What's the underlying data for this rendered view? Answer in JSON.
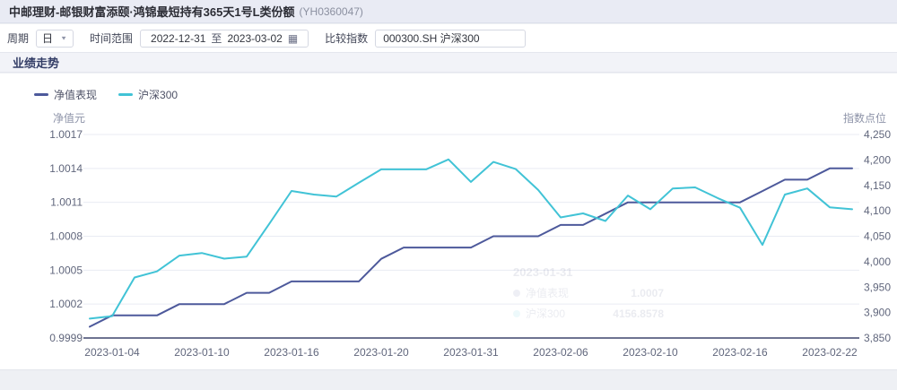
{
  "header": {
    "title": "中邮理财-邮银财富添颐·鸿锦最短持有365天1号L类份额",
    "code": "(YH0360047)"
  },
  "controls": {
    "period_label": "周期",
    "period_value": "日",
    "range_label": "时间范围",
    "range_start": "2022-12-31",
    "range_separator": "至",
    "range_end": "2023-03-02",
    "calendar_icon": "▦",
    "index_label": "比较指数",
    "index_value": "000300.SH 沪深300"
  },
  "section": {
    "title": "业绩走势"
  },
  "colors": {
    "nav_line": "#4d599b",
    "index_line": "#41c3d6",
    "grid": "#e9ebf3",
    "axis_line": "#6e7390",
    "tick_text": "#60667c",
    "axis_title_text": "#8d93a8"
  },
  "chart_data": {
    "type": "line",
    "title": "业绩走势",
    "legend_position": "top-left",
    "grid": true,
    "categories": [
      "2023-01-03",
      "2023-01-04",
      "2023-01-05",
      "2023-01-06",
      "2023-01-09",
      "2023-01-10",
      "2023-01-11",
      "2023-01-12",
      "2023-01-13",
      "2023-01-16",
      "2023-01-17",
      "2023-01-18",
      "2023-01-19",
      "2023-01-20",
      "2023-01-28",
      "2023-01-29",
      "2023-01-30",
      "2023-01-31",
      "2023-02-01",
      "2023-02-02",
      "2023-02-03",
      "2023-02-06",
      "2023-02-07",
      "2023-02-08",
      "2023-02-09",
      "2023-02-10",
      "2023-02-13",
      "2023-02-14",
      "2023-02-15",
      "2023-02-16",
      "2023-02-17",
      "2023-02-20",
      "2023-02-21",
      "2023-02-22",
      "2023-02-23"
    ],
    "x_label_indices": [
      1,
      5,
      9,
      13,
      17,
      21,
      25,
      29,
      33
    ],
    "series": [
      {
        "name": "净值表现",
        "axis": "left",
        "color": "#4d599b",
        "values": [
          1.0,
          1.0001,
          1.0001,
          1.0001,
          1.0002,
          1.0002,
          1.0002,
          1.0003,
          1.0003,
          1.0004,
          1.0004,
          1.0004,
          1.0004,
          1.0006,
          1.0007,
          1.0007,
          1.0007,
          1.0007,
          1.0008,
          1.0008,
          1.0008,
          1.0009,
          1.0009,
          1.001,
          1.0011,
          1.0011,
          1.0011,
          1.0011,
          1.0011,
          1.0011,
          1.0012,
          1.0013,
          1.0013,
          1.0014,
          1.0014
        ]
      },
      {
        "name": "沪深300",
        "axis": "right",
        "color": "#41c3d6",
        "values": [
          3888,
          3893,
          3969,
          3981,
          4012,
          4017,
          4006,
          4010,
          4074,
          4139,
          4132,
          4128,
          4155,
          4181.5,
          4181.5,
          4181.5,
          4201,
          4156.86,
          4196,
          4182,
          4141,
          4087,
          4095,
          4080,
          4130,
          4103,
          4144,
          4146,
          4125,
          4106,
          4033,
          4132,
          4144,
          4107,
          4103
        ]
      }
    ],
    "left_axis": {
      "title": "净值元",
      "min": 0.9999,
      "max": 1.0017,
      "ticks": [
        0.9999,
        1.0002,
        1.0005,
        1.0008,
        1.0011,
        1.0014,
        1.0017
      ],
      "decimals": 4
    },
    "right_axis": {
      "title": "指数点位",
      "min": 3850,
      "max": 4250,
      "tick_step": 50
    },
    "tooltip_ghost": {
      "date": "2023-01-31",
      "rows": [
        {
          "name": "净值表现",
          "value": "1.0007"
        },
        {
          "name": "沪深300",
          "value": "4156.8578"
        }
      ]
    }
  }
}
